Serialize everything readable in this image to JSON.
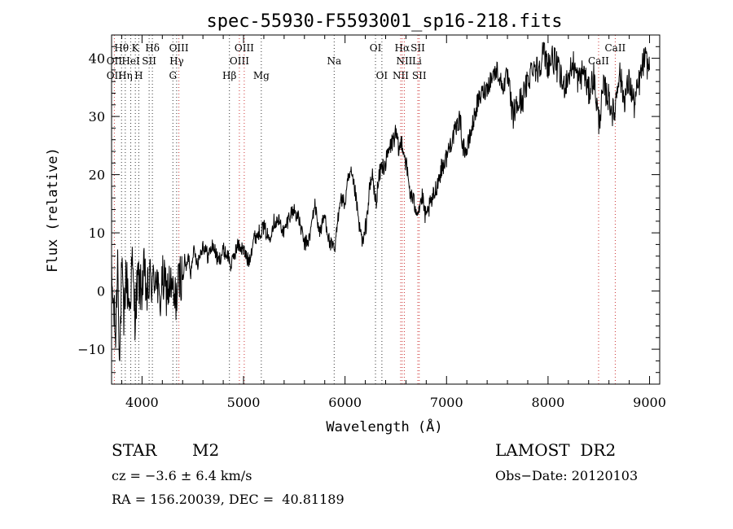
{
  "chart_data": {
    "type": "line",
    "title": "spec-55930-F5593001_sp16-218.fits",
    "xlabel": "Wavelength (Å)",
    "ylabel": "Flux (relative)",
    "xlim": [
      3700,
      9100
    ],
    "ylim": [
      -16,
      44
    ],
    "x_ticks": [
      4000,
      5000,
      6000,
      7000,
      8000,
      9000
    ],
    "y_ticks": [
      -10,
      0,
      10,
      20,
      30,
      40
    ],
    "grid": false,
    "series": [
      {
        "x": [
          3700,
          3740,
          3760,
          3780,
          3800,
          3820,
          3840,
          3860,
          3880,
          3900,
          3930,
          3960,
          3990,
          4020,
          4050,
          4080,
          4110,
          4140,
          4170,
          4200,
          4240,
          4280,
          4320,
          4350,
          4380,
          4400,
          4420,
          4440,
          4460,
          4480,
          4500,
          4550,
          4600,
          4650,
          4700,
          4750,
          4800,
          4850,
          4880,
          4900,
          4950,
          5000,
          5050,
          5100,
          5150,
          5200,
          5250,
          5300,
          5350,
          5400,
          5450,
          5500,
          5550,
          5600,
          5650,
          5700,
          5750,
          5800,
          5850,
          5900,
          5950,
          6000,
          6030,
          6060,
          6100,
          6140,
          6180,
          6210,
          6240,
          6270,
          6300,
          6350,
          6400,
          6450,
          6500,
          6530,
          6560,
          6600,
          6640,
          6680,
          6720,
          6760,
          6800,
          6820,
          6850,
          6900,
          6950,
          7000,
          7050,
          7100,
          7130,
          7160,
          7200,
          7250,
          7300,
          7350,
          7400,
          7450,
          7500,
          7550,
          7600,
          7650,
          7700,
          7750,
          7800,
          7850,
          7900,
          7950,
          8000,
          8050,
          8100,
          8150,
          8200,
          8250,
          8300,
          8350,
          8400,
          8450,
          8500,
          8550,
          8600,
          8650,
          8700,
          8750,
          8800,
          8850,
          8900,
          8950,
          9000
        ],
        "values": [
          2,
          -8,
          6,
          -12,
          4,
          -6,
          3,
          0,
          -3,
          5,
          -4,
          2,
          0,
          3,
          -1,
          2,
          1,
          4,
          -3,
          2,
          0,
          1,
          -2,
          0,
          3,
          2,
          5,
          4,
          6,
          3,
          7,
          5,
          8,
          6,
          8,
          5,
          7,
          6,
          4,
          6,
          8,
          7,
          5,
          9,
          10,
          11,
          9,
          12,
          12,
          10,
          13,
          14,
          12,
          8,
          9,
          15,
          10,
          13,
          8,
          7,
          16,
          15,
          19,
          20,
          17,
          11,
          8,
          12,
          17,
          20,
          15,
          21,
          22,
          25,
          27,
          24,
          26,
          22,
          17,
          15,
          14,
          16,
          12,
          14,
          15,
          18,
          21,
          23,
          26,
          28,
          30,
          25,
          24,
          28,
          32,
          34,
          35,
          37,
          38,
          35,
          37,
          30,
          32,
          33,
          36,
          39,
          38,
          41,
          39,
          40,
          38,
          35,
          37,
          39,
          36,
          38,
          34,
          37,
          29,
          35,
          33,
          30,
          38,
          33,
          36,
          32,
          36,
          40,
          38
        ]
      }
    ],
    "line_labels": [
      {
        "label": "Hθ",
        "x": 3798,
        "row": 1
      },
      {
        "label": "K",
        "x": 3934,
        "row": 1
      },
      {
        "label": "Hδ",
        "x": 4102,
        "row": 1
      },
      {
        "label": "OIII",
        "x": 4363,
        "row": 1
      },
      {
        "label": "OIII",
        "x": 5007,
        "row": 1
      },
      {
        "label": "OI",
        "x": 6300,
        "row": 1
      },
      {
        "label": "Hα",
        "x": 6563,
        "row": 1
      },
      {
        "label": "SII",
        "x": 6717,
        "row": 1
      },
      {
        "label": "CaII",
        "x": 8662,
        "row": 1
      },
      {
        "label": "OII",
        "x": 3727,
        "row": 2
      },
      {
        "label": "HeI",
        "x": 3889,
        "row": 2
      },
      {
        "label": "SII",
        "x": 4070,
        "row": 2
      },
      {
        "label": "Hγ",
        "x": 4341,
        "row": 2
      },
      {
        "label": "OIII",
        "x": 4959,
        "row": 2
      },
      {
        "label": "Na",
        "x": 5893,
        "row": 2
      },
      {
        "label": "NII",
        "x": 6584,
        "row": 2
      },
      {
        "label": "Li",
        "x": 6708,
        "row": 2
      },
      {
        "label": "CaII",
        "x": 8498,
        "row": 2
      },
      {
        "label": "OII",
        "x": 3727,
        "row": 3
      },
      {
        "label": "Hη",
        "x": 3835,
        "row": 3
      },
      {
        "label": "H",
        "x": 3968,
        "row": 3
      },
      {
        "label": "G",
        "x": 4304,
        "row": 3
      },
      {
        "label": "Hβ",
        "x": 4861,
        "row": 3
      },
      {
        "label": "Mg",
        "x": 5175,
        "row": 3
      },
      {
        "label": "OI",
        "x": 6363,
        "row": 3
      },
      {
        "label": "NII",
        "x": 6548,
        "row": 3
      },
      {
        "label": "SII",
        "x": 6731,
        "row": 3
      }
    ],
    "black_marker_lines": [
      3798,
      3835,
      3889,
      3934,
      3968,
      4070,
      4102,
      4304,
      4341,
      4861,
      5175,
      5893,
      6300,
      6363
    ],
    "red_marker_lines": [
      3727,
      4363,
      4959,
      5007,
      6548,
      6563,
      6584,
      6717,
      6731,
      8498,
      8662
    ]
  },
  "info": {
    "class_label": "STAR",
    "subclass": "M2",
    "survey": "LAMOST  DR2",
    "redshift_line": "cz = −3.6 ± 6.4 km/s",
    "obs_date": "Obs−Date: 20120103",
    "coords": "RA = 156.20039, DEC =  40.81189"
  },
  "colors": {
    "ink": "#000000",
    "marker_black": "#333333",
    "marker_red": "#cc3333",
    "background": "#ffffff"
  }
}
